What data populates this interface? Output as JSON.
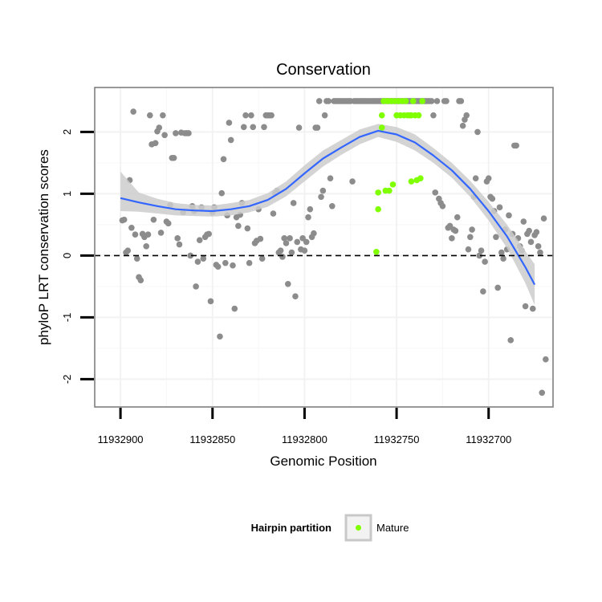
{
  "chart_data": {
    "type": "scatter",
    "title": "Conservation",
    "xlabel": "Genomic Position",
    "ylabel": "phyloP LRT conservation scores",
    "x_reversed": true,
    "xlim": [
      11932914,
      11932665
    ],
    "ylim": [
      -2.45,
      2.72
    ],
    "x_ticks": [
      11932900,
      11932850,
      11932800,
      11932750,
      11932700
    ],
    "y_ticks": [
      -2,
      -1,
      0,
      1,
      2
    ],
    "grid": true,
    "reference_line": {
      "y": 0,
      "style": "dashed"
    },
    "colors": {
      "background_point": "#8c8c8c",
      "mature_point": "#7fff00",
      "smooth_line": "#3366ff",
      "confidence_band": "#cccccc",
      "grid": "#f2f2f2",
      "panel_border": "#7f7f7f"
    },
    "legend": {
      "title": "Hairpin partition",
      "position": "bottom",
      "entries": [
        {
          "label": "Mature",
          "color": "#7fff00"
        }
      ]
    },
    "series": [
      {
        "role": "background",
        "points": [
          [
            11932899,
            0.57
          ],
          [
            11932898,
            0.58
          ],
          [
            11932897,
            0.05
          ],
          [
            11932896,
            0.08
          ],
          [
            11932895,
            1.22
          ],
          [
            11932894,
            0.45
          ],
          [
            11932893,
            2.33
          ],
          [
            11932892,
            0.34
          ],
          [
            11932891,
            -0.05
          ],
          [
            11932890,
            -0.35
          ],
          [
            11932889,
            -0.4
          ],
          [
            11932888,
            0.35
          ],
          [
            11932887,
            0.3
          ],
          [
            11932886,
            0.15
          ],
          [
            11932885,
            0.34
          ],
          [
            11932884,
            2.27
          ],
          [
            11932883,
            1.8
          ],
          [
            11932882,
            0.58
          ],
          [
            11932881,
            1.82
          ],
          [
            11932880,
            2.01
          ],
          [
            11932879,
            2.07
          ],
          [
            11932878,
            0.37
          ],
          [
            11932877,
            2.27
          ],
          [
            11932876,
            1.95
          ],
          [
            11932875,
            0.55
          ],
          [
            11932874,
            0.52
          ],
          [
            11932873,
            0.82
          ],
          [
            11932872,
            1.58
          ],
          [
            11932871,
            1.58
          ],
          [
            11932870,
            1.98
          ],
          [
            11932869,
            0.28
          ],
          [
            11932868,
            0.18
          ],
          [
            11932867,
            1.99
          ],
          [
            11932866,
            0.7
          ],
          [
            11932865,
            1.98
          ],
          [
            11932864,
            1.98
          ],
          [
            11932863,
            1.98
          ],
          [
            11932862,
            0.0
          ],
          [
            11932861,
            0.8
          ],
          [
            11932860,
            0.72
          ],
          [
            11932859,
            -0.5
          ],
          [
            11932858,
            -0.1
          ],
          [
            11932857,
            0.25
          ],
          [
            11932856,
            0.78
          ],
          [
            11932855,
            -0.05
          ],
          [
            11932854,
            0.3
          ],
          [
            11932853,
            0.34
          ],
          [
            11932852,
            0.35
          ],
          [
            11932851,
            -0.74
          ],
          [
            11932850,
            0.7
          ],
          [
            11932849,
            0.78
          ],
          [
            11932848,
            -0.15
          ],
          [
            11932847,
            -0.18
          ],
          [
            11932846,
            -1.31
          ],
          [
            11932845,
            1.01
          ],
          [
            11932844,
            1.56
          ],
          [
            11932843,
            -0.12
          ],
          [
            11932842,
            0.65
          ],
          [
            11932841,
            2.15
          ],
          [
            11932840,
            1.87
          ],
          [
            11932839,
            -0.16
          ],
          [
            11932838,
            -0.86
          ],
          [
            11932837,
            0.62
          ],
          [
            11932836,
            0.48
          ],
          [
            11932835,
            0.66
          ],
          [
            11932834,
            0.85
          ],
          [
            11932833,
            2.08
          ],
          [
            11932832,
            2.27
          ],
          [
            11932831,
            0.44
          ],
          [
            11932830,
            -0.12
          ],
          [
            11932829,
            2.27
          ],
          [
            11932828,
            2.08
          ],
          [
            11932827,
            0.2
          ],
          [
            11932826,
            0.24
          ],
          [
            11932825,
            0.75
          ],
          [
            11932824,
            0.27
          ],
          [
            11932823,
            -0.05
          ],
          [
            11932822,
            2.08
          ],
          [
            11932821,
            2.27
          ],
          [
            11932820,
            2.27
          ],
          [
            11932819,
            2.27
          ],
          [
            11932818,
            2.27
          ],
          [
            11932817,
            0.68
          ],
          [
            11932816,
            1.01
          ],
          [
            11932815,
            1.05
          ],
          [
            11932814,
            0.05
          ],
          [
            11932813,
            0.08
          ],
          [
            11932812,
            -0.02
          ],
          [
            11932811,
            0.28
          ],
          [
            11932810,
            0.2
          ],
          [
            11932809,
            -0.46
          ],
          [
            11932808,
            0.28
          ],
          [
            11932807,
            0.05
          ],
          [
            11932806,
            0.85
          ],
          [
            11932805,
            -0.66
          ],
          [
            11932804,
            0.22
          ],
          [
            11932803,
            2.07
          ],
          [
            11932802,
            0.1
          ],
          [
            11932801,
            0.28
          ],
          [
            11932800,
            0.08
          ],
          [
            11932799,
            0.22
          ],
          [
            11932798,
            0.62
          ],
          [
            11932797,
            0.75
          ],
          [
            11932796,
            0.3
          ],
          [
            11932795,
            0.36
          ],
          [
            11932794,
            2.07
          ],
          [
            11932793,
            2.07
          ],
          [
            11932792,
            2.5
          ],
          [
            11932791,
            0.95
          ],
          [
            11932790,
            1.05
          ],
          [
            11932789,
            2.27
          ],
          [
            11932788,
            2.5
          ],
          [
            11932787,
            2.5
          ],
          [
            11932786,
            1.25
          ],
          [
            11932785,
            0.8
          ],
          [
            11932784,
            2.5
          ],
          [
            11932783,
            2.5
          ],
          [
            11932782,
            2.5
          ],
          [
            11932781,
            2.5
          ],
          [
            11932780,
            2.5
          ],
          [
            11932779,
            2.5
          ],
          [
            11932778,
            2.5
          ],
          [
            11932777,
            2.5
          ],
          [
            11932776,
            2.5
          ],
          [
            11932775,
            2.5
          ],
          [
            11932774,
            1.2
          ],
          [
            11932773,
            2.5
          ],
          [
            11932772,
            2.5
          ],
          [
            11932771,
            2.5
          ],
          [
            11932770,
            2.5
          ],
          [
            11932769,
            2.5
          ],
          [
            11932768,
            2.5
          ],
          [
            11932767,
            2.5
          ],
          [
            11932766,
            2.5
          ],
          [
            11932765,
            2.5
          ],
          [
            11932764,
            2.5
          ],
          [
            11932763,
            2.5
          ],
          [
            11932762,
            2.5
          ],
          [
            11932761,
            2.5
          ],
          [
            11932760,
            2.5
          ],
          [
            11932759,
            2.5
          ],
          [
            11932758,
            2.5
          ],
          [
            11932757,
            2.5
          ],
          [
            11932756,
            2.5
          ],
          [
            11932755,
            2.5
          ],
          [
            11932754,
            2.5
          ],
          [
            11932753,
            2.5
          ],
          [
            11932752,
            2.5
          ],
          [
            11932751,
            2.5
          ],
          [
            11932750,
            2.5
          ],
          [
            11932749,
            2.5
          ],
          [
            11932748,
            2.5
          ],
          [
            11932747,
            2.5
          ],
          [
            11932746,
            2.5
          ],
          [
            11932745,
            2.5
          ],
          [
            11932744,
            2.5
          ],
          [
            11932743,
            2.5
          ],
          [
            11932742,
            2.5
          ],
          [
            11932741,
            2.5
          ],
          [
            11932740,
            2.5
          ],
          [
            11932739,
            2.5
          ],
          [
            11932738,
            2.5
          ],
          [
            11932737,
            2.5
          ],
          [
            11932736,
            2.5
          ],
          [
            11932735,
            2.5
          ],
          [
            11932734,
            2.5
          ],
          [
            11932733,
            2.5
          ],
          [
            11932732,
            2.5
          ],
          [
            11932731,
            2.5
          ],
          [
            11932730,
            2.27
          ],
          [
            11932729,
            1.02
          ],
          [
            11932728,
            2.5
          ],
          [
            11932727,
            0.92
          ],
          [
            11932726,
            0.85
          ],
          [
            11932725,
            0.8
          ],
          [
            11932724,
            2.5
          ],
          [
            11932723,
            2.5
          ],
          [
            11932722,
            0.45
          ],
          [
            11932721,
            0.48
          ],
          [
            11932720,
            0.28
          ],
          [
            11932719,
            0.42
          ],
          [
            11932718,
            0.4
          ],
          [
            11932717,
            0.62
          ],
          [
            11932716,
            2.5
          ],
          [
            11932715,
            2.5
          ],
          [
            11932714,
            2.1
          ],
          [
            11932713,
            2.2
          ],
          [
            11932712,
            2.27
          ],
          [
            11932711,
            0.1
          ],
          [
            11932710,
            0.3
          ],
          [
            11932709,
            0.42
          ],
          [
            11932708,
            0.95
          ],
          [
            11932707,
            1.25
          ],
          [
            11932706,
            2.0
          ],
          [
            11932705,
            0.0
          ],
          [
            11932704,
            0.08
          ],
          [
            11932703,
            -0.58
          ],
          [
            11932702,
            -0.1
          ],
          [
            11932701,
            1.2
          ],
          [
            11932700,
            1.25
          ],
          [
            11932699,
            0.95
          ],
          [
            11932698,
            0.92
          ],
          [
            11932697,
            0.72
          ],
          [
            11932696,
            0.3
          ],
          [
            11932695,
            -0.52
          ],
          [
            11932694,
            0.78
          ],
          [
            11932693,
            0.05
          ],
          [
            11932692,
            -0.05
          ],
          [
            11932691,
            0.42
          ],
          [
            11932690,
            0.1
          ],
          [
            11932689,
            0.65
          ],
          [
            11932688,
            -1.37
          ],
          [
            11932687,
            0.35
          ],
          [
            11932686,
            1.78
          ],
          [
            11932685,
            1.78
          ],
          [
            11932684,
            0.28
          ],
          [
            11932683,
            0.15
          ],
          [
            11932682,
            0.08
          ],
          [
            11932681,
            0.55
          ],
          [
            11932680,
            -0.82
          ],
          [
            11932679,
            0.35
          ],
          [
            11932678,
            0.4
          ],
          [
            11932677,
            0.22
          ],
          [
            11932676,
            -0.86
          ],
          [
            11932675,
            0.33
          ],
          [
            11932674,
            0.38
          ],
          [
            11932673,
            0.15
          ],
          [
            11932672,
            0.05
          ],
          [
            11932671,
            -2.22
          ],
          [
            11932670,
            0.6
          ],
          [
            11932669,
            -1.68
          ]
        ]
      },
      {
        "role": "highlight",
        "name": "Mature",
        "points": [
          [
            11932761,
            0.06
          ],
          [
            11932760,
            1.02
          ],
          [
            11932760,
            0.75
          ],
          [
            11932758,
            2.27
          ],
          [
            11932757,
            2.5
          ],
          [
            11932756,
            1.05
          ],
          [
            11932755,
            2.5
          ],
          [
            11932754,
            1.05
          ],
          [
            11932753,
            2.5
          ],
          [
            11932752,
            1.15
          ],
          [
            11932751,
            2.5
          ],
          [
            11932750,
            2.27
          ],
          [
            11932749,
            2.5
          ],
          [
            11932748,
            2.27
          ],
          [
            11932747,
            2.5
          ],
          [
            11932746,
            2.27
          ],
          [
            11932745,
            2.5
          ],
          [
            11932744,
            2.27
          ],
          [
            11932743,
            2.27
          ],
          [
            11932742,
            1.2
          ],
          [
            11932742,
            2.27
          ],
          [
            11932741,
            2.5
          ],
          [
            11932740,
            2.27
          ],
          [
            11932739,
            1.22
          ],
          [
            11932738,
            2.27
          ],
          [
            11932737,
            1.25
          ],
          [
            11932736,
            2.5
          ],
          [
            11932758,
            2.07
          ]
        ]
      }
    ],
    "smooth": {
      "x": [
        11932900,
        11932890,
        11932880,
        11932870,
        11932860,
        11932850,
        11932840,
        11932830,
        11932820,
        11932810,
        11932800,
        11932790,
        11932780,
        11932770,
        11932760,
        11932750,
        11932740,
        11932730,
        11932720,
        11932710,
        11932700,
        11932690,
        11932680,
        11932675
      ],
      "y": [
        0.93,
        0.86,
        0.8,
        0.75,
        0.73,
        0.72,
        0.75,
        0.8,
        0.9,
        1.08,
        1.33,
        1.57,
        1.75,
        1.92,
        2.02,
        1.96,
        1.83,
        1.62,
        1.38,
        1.08,
        0.72,
        0.31,
        -0.19,
        -0.47
      ],
      "ci_low": [
        0.72,
        0.71,
        0.68,
        0.65,
        0.64,
        0.63,
        0.65,
        0.7,
        0.79,
        0.96,
        1.2,
        1.44,
        1.63,
        1.8,
        1.92,
        1.84,
        1.7,
        1.5,
        1.26,
        0.95,
        0.57,
        0.12,
        -0.45,
        -0.8
      ],
      "ci_high": [
        1.36,
        1.02,
        0.92,
        0.85,
        0.82,
        0.81,
        0.85,
        0.9,
        1.01,
        1.2,
        1.46,
        1.7,
        1.87,
        2.04,
        2.13,
        2.08,
        1.96,
        1.74,
        1.5,
        1.21,
        0.87,
        0.5,
        0.07,
        -0.14
      ]
    }
  }
}
